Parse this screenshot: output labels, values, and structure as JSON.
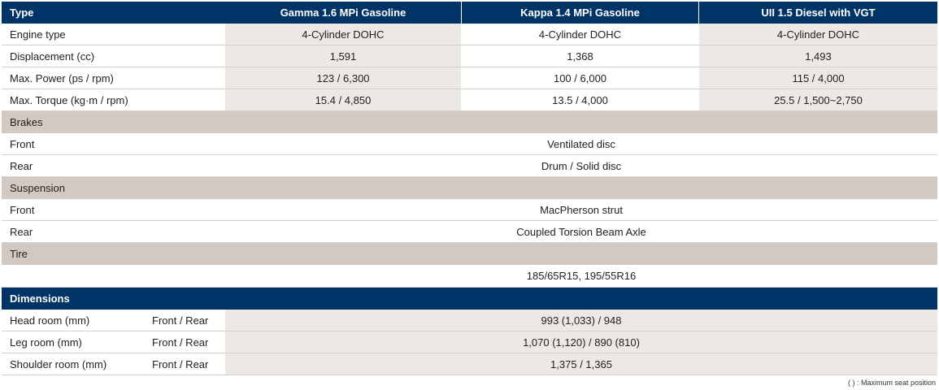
{
  "header": {
    "type": "Type",
    "engines": [
      "Gamma 1.6 MPi Gasoline",
      "Kappa 1.4 MPi Gasoline",
      "UII 1.5 Diesel with VGT"
    ]
  },
  "engine_rows": [
    {
      "label": "Engine type",
      "values": [
        "4-Cylinder DOHC",
        "4-Cylinder DOHC",
        "4-Cylinder DOHC"
      ]
    },
    {
      "label": "Displacement (cc)",
      "values": [
        "1,591",
        "1,368",
        "1,493"
      ]
    },
    {
      "label": "Max. Power (ps / rpm)",
      "values": [
        "123 / 6,300",
        "100 / 6,000",
        "115 / 4,000"
      ]
    },
    {
      "label": "Max. Torque (kg·m / rpm)",
      "values": [
        "15.4 / 4,850",
        "13.5 / 4,000",
        "25.5 / 1,500~2,750"
      ]
    }
  ],
  "brakes": {
    "title": "Brakes",
    "rows": [
      {
        "label": "Front",
        "value": "Ventilated disc"
      },
      {
        "label": "Rear",
        "value": "Drum / Solid disc"
      }
    ]
  },
  "suspension": {
    "title": "Suspension",
    "rows": [
      {
        "label": "Front",
        "value": "MacPherson strut"
      },
      {
        "label": "Rear",
        "value": "Coupled Torsion Beam Axle"
      }
    ]
  },
  "tire": {
    "title": "Tire",
    "value": "185/65R15, 195/55R16"
  },
  "dimensions": {
    "title": "Dimensions",
    "rows": [
      {
        "label": "Head room (mm)",
        "sub": "Front / Rear",
        "value": "993 (1,033) /  948"
      },
      {
        "label": "Leg room (mm)",
        "sub": "Front / Rear",
        "value": "1,070 (1,120) / 890 (810)"
      },
      {
        "label": "Shoulder room (mm)",
        "sub": "Front / Rear",
        "value": "1,375 / 1,365"
      }
    ]
  },
  "footnote": "( ) : Maximum seat position",
  "colors": {
    "header": "#003366",
    "section": "#d1c9c2",
    "shade": "#ece8e4"
  }
}
